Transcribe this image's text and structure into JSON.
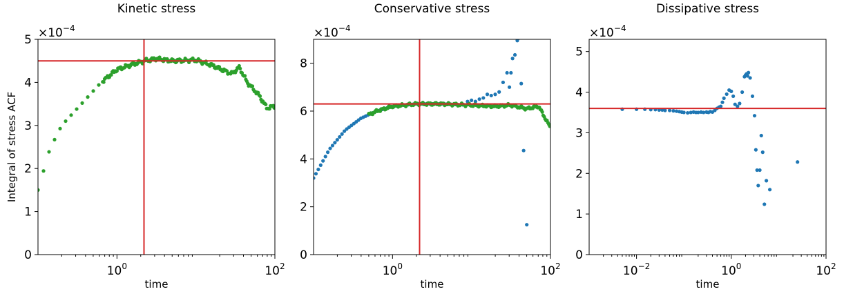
{
  "chart_data": [
    {
      "type": "scatter",
      "title": "Kinetic stress",
      "xlabel": "time",
      "ylabel": "Integral of stress ACF",
      "xscale": "log",
      "xlim": [
        0.1,
        100
      ],
      "ylim": [
        0,
        5
      ],
      "y_multiplier": "×10",
      "y_multiplier_exp": "−4",
      "xticks": [
        {
          "value": 1,
          "base": "10",
          "exp": "0"
        },
        {
          "value": 100,
          "base": "10",
          "exp": "2"
        }
      ],
      "yticks": [
        "0",
        "1",
        "2",
        "3",
        "4",
        "5"
      ],
      "hline": 4.5,
      "vline": 2.2,
      "line_color": "#d62728",
      "series": [
        {
          "color": "#2ca02c",
          "x": [],
          "y": []
        }
      ]
    },
    {
      "type": "scatter",
      "title": "Conservative stress",
      "xlabel": "time",
      "ylabel": "",
      "xscale": "log",
      "xlim": [
        0.1,
        100
      ],
      "ylim": [
        0,
        9
      ],
      "y_multiplier": "×10",
      "y_multiplier_exp": "−4",
      "xticks": [
        {
          "value": 1,
          "base": "10",
          "exp": "0"
        },
        {
          "value": 100,
          "base": "10",
          "exp": "2"
        }
      ],
      "yticks": [
        "0",
        "2",
        "4",
        "6",
        "8"
      ],
      "hline": 6.3,
      "vline": 2.2,
      "line_color": "#d62728",
      "series": [
        {
          "color": "#1f77b4",
          "x": [],
          "y": []
        },
        {
          "color": "#2ca02c",
          "x": [],
          "y": []
        }
      ]
    },
    {
      "type": "scatter",
      "title": "Dissipative stress",
      "xlabel": "time",
      "ylabel": "",
      "xscale": "log",
      "xlim": [
        0.001,
        100
      ],
      "ylim": [
        0,
        5.3
      ],
      "y_multiplier": "×10",
      "y_multiplier_exp": "−4",
      "xticks": [
        {
          "value": 0.01,
          "base": "10",
          "exp": "−2"
        },
        {
          "value": 1,
          "base": "10",
          "exp": "0"
        },
        {
          "value": 100,
          "base": "10",
          "exp": "2"
        }
      ],
      "yticks": [
        "0",
        "1",
        "2",
        "3",
        "4",
        "5"
      ],
      "hline": 3.6,
      "vline": null,
      "line_color": "#d62728",
      "series": [
        {
          "color": "#1f77b4",
          "x": [
            0.005,
            0.01,
            0.015,
            0.02,
            0.025,
            0.03,
            0.035,
            0.04,
            0.05,
            0.06,
            0.07,
            0.08,
            0.09,
            0.1,
            0.12,
            0.14,
            0.16,
            0.18,
            0.2,
            0.23,
            0.26,
            0.3,
            0.33,
            0.36,
            0.4,
            0.45,
            0.5,
            0.55,
            0.6,
            0.65,
            0.7,
            0.8,
            0.9,
            1.0,
            1.1,
            1.2,
            1.35,
            1.5,
            1.7,
            1.9,
            2.0,
            2.1,
            2.2,
            2.3,
            2.5,
            2.8,
            3.1,
            3.3,
            3.5,
            3.7,
            4.0,
            4.3,
            4.6,
            5.0,
            5.5,
            6.5,
            25
          ],
          "y": [
            3.58,
            3.58,
            3.58,
            3.57,
            3.57,
            3.56,
            3.56,
            3.55,
            3.55,
            3.54,
            3.53,
            3.52,
            3.51,
            3.5,
            3.49,
            3.5,
            3.51,
            3.5,
            3.5,
            3.51,
            3.5,
            3.51,
            3.5,
            3.52,
            3.51,
            3.55,
            3.6,
            3.63,
            3.65,
            3.75,
            3.85,
            3.95,
            4.05,
            4.02,
            3.9,
            3.7,
            3.65,
            3.72,
            4.0,
            4.38,
            4.42,
            4.45,
            4.4,
            4.48,
            4.35,
            3.9,
            3.42,
            2.58,
            2.08,
            1.7,
            2.08,
            2.93,
            2.52,
            1.24,
            1.82,
            1.6,
            2.28
          ]
        }
      ]
    }
  ]
}
